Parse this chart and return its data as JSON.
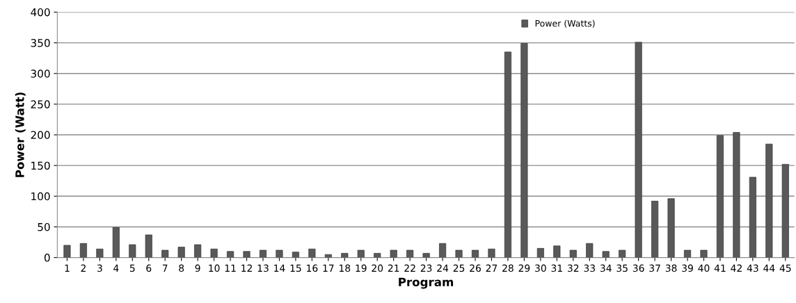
{
  "chart_data": {
    "type": "bar",
    "xlabel": "Program",
    "ylabel": "Power (Watt)",
    "categories": [
      "1",
      "2",
      "3",
      "4",
      "5",
      "6",
      "7",
      "8",
      "9",
      "10",
      "11",
      "12",
      "13",
      "14",
      "15",
      "16",
      "17",
      "18",
      "19",
      "20",
      "21",
      "22",
      "23",
      "24",
      "25",
      "26",
      "27",
      "28",
      "29",
      "30",
      "31",
      "32",
      "33",
      "34",
      "35",
      "36",
      "37",
      "38",
      "39",
      "40",
      "41",
      "42",
      "43",
      "44",
      "45"
    ],
    "series": [
      {
        "name": "Power (Watts)",
        "color": "#595959",
        "values": [
          20,
          23,
          14,
          49,
          21,
          37,
          12,
          17,
          21,
          14,
          10,
          10,
          12,
          12,
          9,
          14,
          5,
          7,
          12,
          7,
          12,
          12,
          7,
          23,
          12,
          12,
          14,
          335,
          349,
          15,
          19,
          12,
          23,
          10,
          12,
          351,
          92,
          96,
          12,
          12,
          199,
          204,
          131,
          185,
          152
        ]
      }
    ],
    "ylim": [
      0,
      400
    ],
    "yticks": [
      0,
      50,
      100,
      150,
      200,
      250,
      300,
      350,
      400
    ],
    "grid": "y",
    "legend": "top"
  }
}
